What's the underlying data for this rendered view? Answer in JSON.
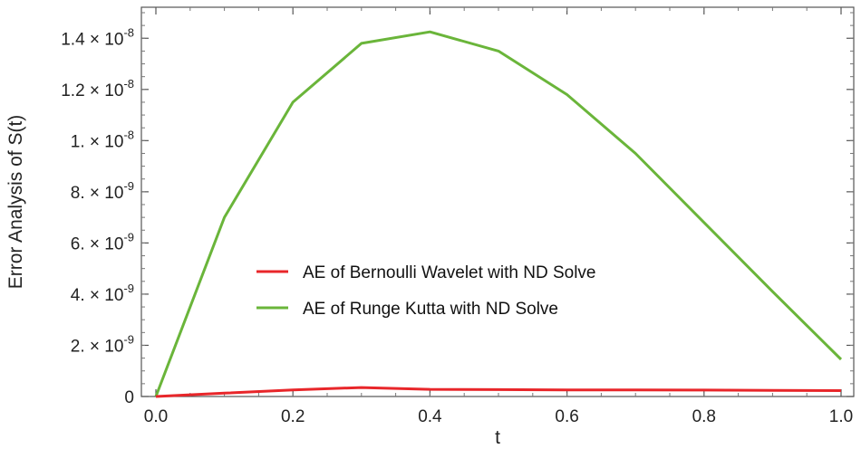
{
  "chart_data": {
    "type": "line",
    "title": "",
    "xlabel": "t",
    "ylabel": "Error Analysis of S(t)",
    "xlim": [
      0,
      1.0
    ],
    "ylim": [
      0,
      1.5e-08
    ],
    "grid": false,
    "legend_position": "center",
    "x_ticks": [
      {
        "value": 0.0,
        "label": "0.0"
      },
      {
        "value": 0.2,
        "label": "0.2"
      },
      {
        "value": 0.4,
        "label": "0.4"
      },
      {
        "value": 0.6,
        "label": "0.6"
      },
      {
        "value": 0.8,
        "label": "0.8"
      },
      {
        "value": 1.0,
        "label": "1.0"
      }
    ],
    "y_ticks": [
      {
        "value": 0,
        "mantissa": "0",
        "exponent": ""
      },
      {
        "value": 2e-09,
        "mantissa": "2.",
        "exponent": "-9"
      },
      {
        "value": 4e-09,
        "mantissa": "4.",
        "exponent": "-9"
      },
      {
        "value": 6e-09,
        "mantissa": "6.",
        "exponent": "-9"
      },
      {
        "value": 8e-09,
        "mantissa": "8.",
        "exponent": "-9"
      },
      {
        "value": 1e-08,
        "mantissa": "1.",
        "exponent": "-8"
      },
      {
        "value": 1.2e-08,
        "mantissa": "1.2",
        "exponent": "-8"
      },
      {
        "value": 1.4e-08,
        "mantissa": "1.4",
        "exponent": "-8"
      }
    ],
    "x": [
      0.0,
      0.1,
      0.2,
      0.3,
      0.4,
      0.5,
      0.6,
      0.7,
      0.8,
      0.9,
      1.0
    ],
    "series": [
      {
        "name": "AE of Bernoulli Wavelet with ND Solve",
        "color": "#e8262a",
        "values": [
          0,
          1.3e-10,
          2.6e-10,
          3.5e-10,
          2.8e-10,
          2.7e-10,
          2.6e-10,
          2.6e-10,
          2.5e-10,
          2.4e-10,
          2.3e-10
        ]
      },
      {
        "name": "AE of Runge Kutta with ND Solve",
        "color": "#6ab53a",
        "values": [
          0,
          7e-09,
          1.15e-08,
          1.38e-08,
          1.425e-08,
          1.35e-08,
          1.18e-08,
          9.5e-09,
          6.8e-09,
          4.1e-09,
          1.45e-09
        ]
      }
    ]
  }
}
